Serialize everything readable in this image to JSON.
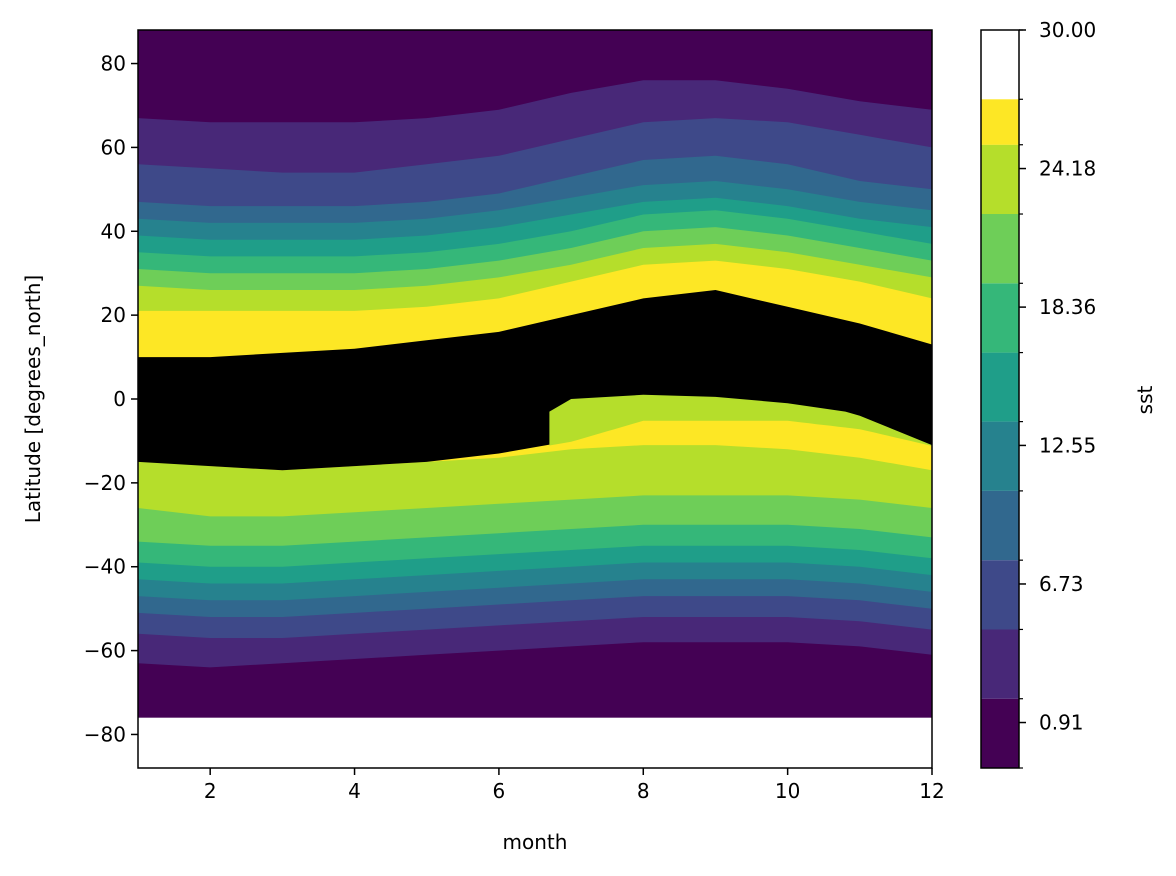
{
  "chart_data": {
    "type": "filled-contour",
    "xlabel": "month",
    "ylabel": "Latitude [degrees_north]",
    "colorbar_label": "sst",
    "xlim": [
      1,
      12
    ],
    "ylim": [
      -88,
      88
    ],
    "data_ylim": [
      -76,
      88
    ],
    "xticks": [
      2,
      4,
      6,
      8,
      10,
      12
    ],
    "yticks": [
      -80,
      -60,
      -40,
      -20,
      0,
      20,
      40,
      60,
      80
    ],
    "color_levels": [
      -1.0,
      1.91,
      4.82,
      7.73,
      10.64,
      13.55,
      16.45,
      19.36,
      22.27,
      25.18,
      27.09,
      30.0
    ],
    "colorbar_ticks": [
      0.91,
      6.73,
      12.55,
      18.36,
      24.18,
      30.0
    ],
    "colors": [
      "#440154",
      "#482878",
      "#3e4989",
      "#31688e",
      "#26828e",
      "#1f9e89",
      "#35b779",
      "#6ece58",
      "#b5de2b",
      "#fde725"
    ],
    "months": [
      1,
      2,
      3,
      4,
      5,
      6,
      7,
      8,
      9,
      10,
      11,
      12
    ],
    "band_boundaries": [
      {
        "level": 1,
        "north": [
          67,
          66,
          66,
          66,
          67,
          69,
          73,
          76,
          76,
          74,
          71,
          69
        ],
        "south": [
          -63,
          -64,
          -63,
          -62,
          -61,
          -60,
          -59,
          -58,
          -58,
          -58,
          -59,
          -61
        ]
      },
      {
        "level": 2,
        "north": [
          56,
          55,
          54,
          54,
          56,
          58,
          62,
          66,
          67,
          66,
          63,
          60
        ],
        "south": [
          -56,
          -57,
          -57,
          -56,
          -55,
          -54,
          -53,
          -52,
          -52,
          -52,
          -53,
          -55
        ]
      },
      {
        "level": 3,
        "north": [
          47,
          46,
          46,
          46,
          47,
          49,
          53,
          57,
          58,
          56,
          52,
          50
        ],
        "south": [
          -51,
          -52,
          -52,
          -51,
          -50,
          -49,
          -48,
          -47,
          -47,
          -47,
          -48,
          -50
        ]
      },
      {
        "level": 4,
        "north": [
          43,
          42,
          42,
          42,
          43,
          45,
          48,
          51,
          52,
          50,
          47,
          45
        ],
        "south": [
          -47,
          -48,
          -48,
          -47,
          -46,
          -45,
          -44,
          -43,
          -43,
          -43,
          -44,
          -46
        ]
      },
      {
        "level": 5,
        "north": [
          39,
          38,
          38,
          38,
          39,
          41,
          44,
          47,
          48,
          46,
          43,
          41
        ],
        "south": [
          -43,
          -44,
          -44,
          -43,
          -42,
          -41,
          -40,
          -39,
          -39,
          -39,
          -40,
          -42
        ]
      },
      {
        "level": 6,
        "north": [
          35,
          34,
          34,
          34,
          35,
          37,
          40,
          44,
          45,
          43,
          40,
          37
        ],
        "south": [
          -39,
          -40,
          -40,
          -39,
          -38,
          -37,
          -36,
          -35,
          -35,
          -35,
          -36,
          -38
        ]
      },
      {
        "level": 7,
        "north": [
          31,
          30,
          30,
          30,
          31,
          33,
          36,
          40,
          41,
          39,
          36,
          33
        ],
        "south": [
          -34,
          -35,
          -35,
          -34,
          -33,
          -32,
          -31,
          -30,
          -30,
          -30,
          -31,
          -33
        ]
      },
      {
        "level": 8,
        "north": [
          27,
          26,
          26,
          26,
          27,
          29,
          32,
          36,
          37,
          35,
          32,
          29
        ],
        "south": [
          -26,
          -28,
          -28,
          -27,
          -26,
          -25,
          -24,
          -23,
          -23,
          -23,
          -24,
          -26
        ]
      },
      {
        "level": 9,
        "north": [
          21,
          21,
          21,
          21,
          22,
          24,
          28,
          32,
          33,
          31,
          28,
          24
        ],
        "south": [
          -14,
          -16,
          -17,
          -16,
          -15,
          -14,
          -12,
          -11,
          -11,
          -12,
          -14,
          -17
        ]
      },
      {
        "level": 10,
        "north": [
          10,
          10,
          11,
          12,
          14,
          16,
          20,
          24,
          26,
          22,
          18,
          13
        ],
        "south": [
          -15,
          -16,
          -17,
          -16,
          -15,
          -13,
          -10,
          -5,
          -5,
          -5,
          -7,
          -11
        ]
      }
    ],
    "green_tongue": {
      "months": [
        6.7,
        7,
        8,
        9,
        10,
        10.8,
        11
      ],
      "top": [
        -3,
        0,
        1,
        0.5,
        -1,
        -3,
        -4
      ]
    }
  }
}
